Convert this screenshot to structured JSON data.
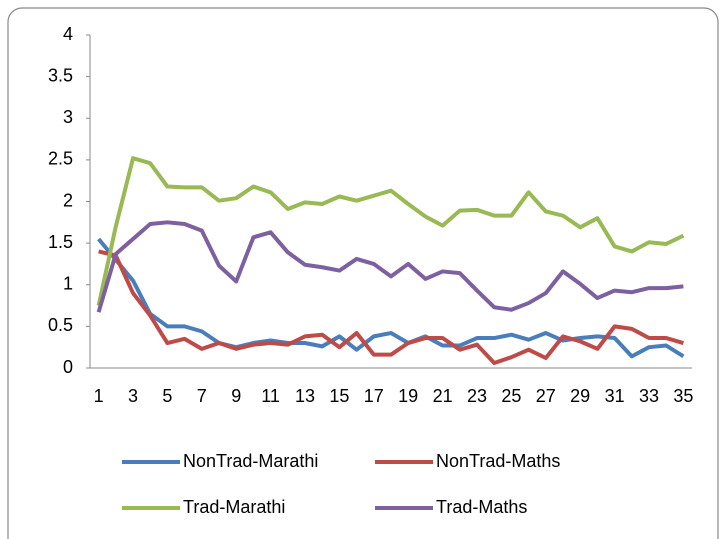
{
  "chart_data": {
    "type": "line",
    "categories": [
      1,
      null,
      3,
      null,
      5,
      null,
      7,
      null,
      9,
      null,
      11,
      null,
      13,
      null,
      15,
      null,
      17,
      null,
      19,
      null,
      21,
      null,
      23,
      null,
      25,
      null,
      27,
      null,
      29,
      null,
      31,
      null,
      33,
      null,
      35
    ],
    "series": [
      {
        "name": "NonTrad-Marathi",
        "color": "#4a7ebb",
        "values": [
          1.55,
          1.3,
          1.05,
          0.65,
          0.5,
          0.5,
          0.44,
          0.3,
          0.25,
          0.3,
          0.33,
          0.3,
          0.3,
          0.26,
          0.38,
          0.22,
          0.38,
          0.42,
          0.3,
          0.38,
          0.27,
          0.27,
          0.36,
          0.36,
          0.4,
          0.34,
          0.42,
          0.33,
          0.36,
          0.38,
          0.36,
          0.14,
          0.25,
          0.27,
          0.14
        ]
      },
      {
        "name": "NonTrad-Maths",
        "color": "#be4b48",
        "values": [
          1.4,
          1.35,
          0.9,
          0.63,
          0.3,
          0.35,
          0.23,
          0.3,
          0.23,
          0.28,
          0.3,
          0.28,
          0.38,
          0.4,
          0.25,
          0.42,
          0.16,
          0.16,
          0.3,
          0.36,
          0.36,
          0.22,
          0.28,
          0.06,
          0.13,
          0.22,
          0.12,
          0.38,
          0.32,
          0.23,
          0.5,
          0.47,
          0.36,
          0.36,
          0.3
        ]
      },
      {
        "name": "Trad-Marathi",
        "color": "#98b954",
        "values": [
          0.75,
          1.7,
          2.52,
          2.46,
          2.18,
          2.17,
          2.17,
          2.01,
          2.04,
          2.18,
          2.11,
          1.91,
          1.99,
          1.97,
          2.06,
          2.01,
          2.07,
          2.13,
          1.97,
          1.82,
          1.71,
          1.89,
          1.9,
          1.83,
          1.83,
          2.11,
          1.88,
          1.83,
          1.69,
          1.8,
          1.46,
          1.4,
          1.51,
          1.49,
          1.59
        ]
      },
      {
        "name": "Trad-Maths",
        "color": "#7d60a0",
        "values": [
          0.67,
          1.37,
          1.55,
          1.73,
          1.75,
          1.73,
          1.65,
          1.23,
          1.04,
          1.57,
          1.63,
          1.39,
          1.24,
          1.21,
          1.17,
          1.31,
          1.25,
          1.1,
          1.25,
          1.07,
          1.16,
          1.14,
          0.93,
          0.73,
          0.7,
          0.78,
          0.9,
          1.16,
          1.01,
          0.84,
          0.93,
          0.91,
          0.96,
          0.96,
          0.98
        ]
      }
    ],
    "ylim": [
      0,
      4
    ],
    "yticks": [
      0,
      0.5,
      1,
      1.5,
      2,
      2.5,
      3,
      3.5,
      4
    ],
    "grid": false,
    "legend": "bottom"
  }
}
